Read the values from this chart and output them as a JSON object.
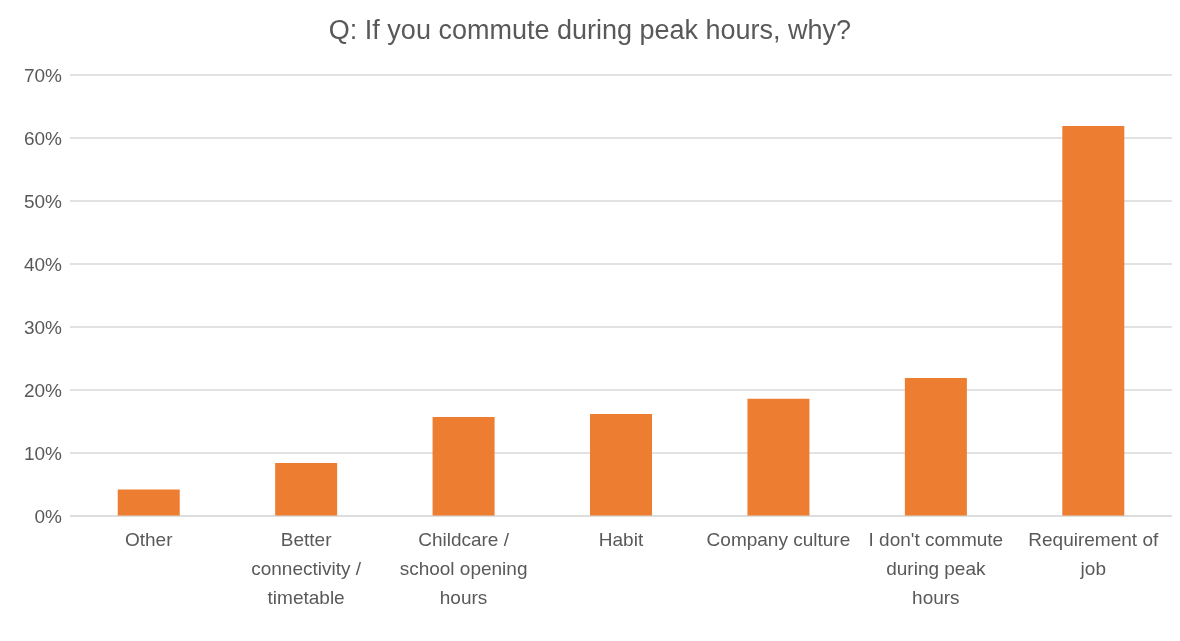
{
  "chart_data": {
    "type": "bar",
    "title": "Q: If you commute during peak hours, why?",
    "categories": [
      "Other",
      "Better connectivity / timetable",
      "Childcare / school opening hours",
      "Habit",
      "Company culture",
      "I don't commute during peak hours",
      "Requirement of job"
    ],
    "values": [
      4.2,
      8.4,
      15.7,
      16.2,
      18.6,
      21.9,
      61.9
    ],
    "color": "#ed7d31",
    "ylim": [
      0,
      70
    ],
    "yticks": [
      {
        "value": 0,
        "label": "0%"
      },
      {
        "value": 10,
        "label": "10%"
      },
      {
        "value": 20,
        "label": "20%"
      },
      {
        "value": 30,
        "label": "30%"
      },
      {
        "value": 40,
        "label": "40%"
      },
      {
        "value": 50,
        "label": "50%"
      },
      {
        "value": 60,
        "label": "60%"
      },
      {
        "value": 70,
        "label": "70%"
      }
    ],
    "grid": "y"
  }
}
